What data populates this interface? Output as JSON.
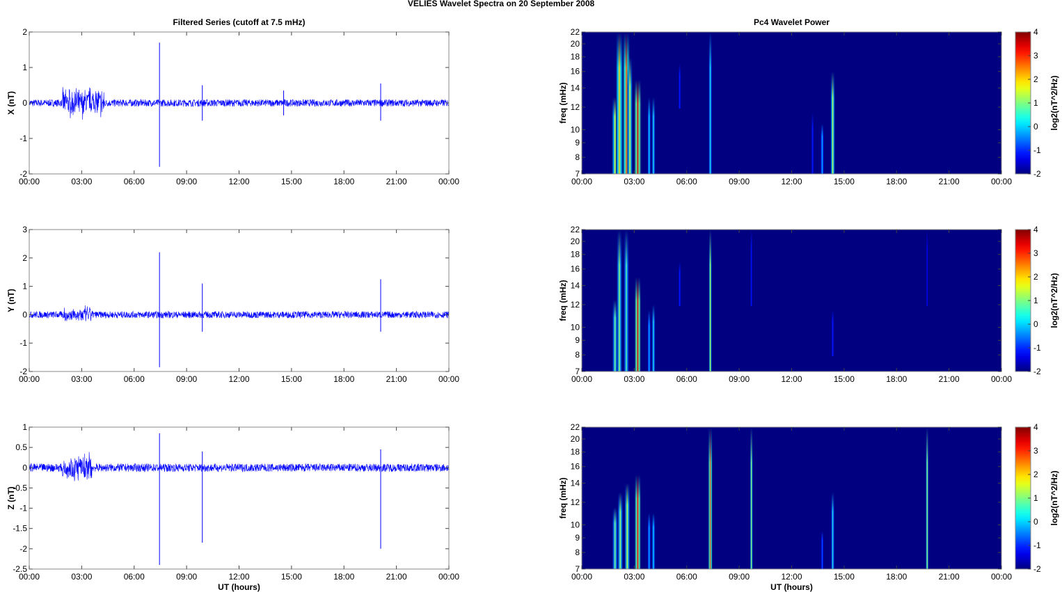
{
  "title": "VELIES Wavelet Spectra on 20 September 2008",
  "chart_data": [
    {
      "type": "line",
      "title": "Filtered Series (cutoff at 7.5 mHz)",
      "ylabel": "X (nT)",
      "xlabel": "",
      "ylim": [
        -2,
        2
      ],
      "yticks": [
        -2,
        -1,
        0,
        1,
        2
      ],
      "xlim": [
        0,
        24
      ],
      "xticks": [
        "00:00",
        "03:00",
        "06:00",
        "09:00",
        "12:00",
        "15:00",
        "18:00",
        "21:00",
        "00:00"
      ],
      "color": "#0000ff",
      "noise_amplitude": 0.1,
      "bursts": [
        {
          "t_start": 1.9,
          "t_end": 4.3,
          "amplitude": 0.5
        }
      ],
      "spikes": [
        {
          "t": 7.45,
          "max": 1.7,
          "min": -1.8
        },
        {
          "t": 9.9,
          "max": 0.5,
          "min": -0.5
        },
        {
          "t": 14.55,
          "max": 0.35,
          "min": -0.35
        },
        {
          "t": 20.1,
          "max": 0.55,
          "min": -0.5
        }
      ]
    },
    {
      "type": "line",
      "title": "",
      "ylabel": "Y (nT)",
      "xlabel": "",
      "ylim": [
        -2,
        3
      ],
      "yticks": [
        -2,
        -1,
        0,
        1,
        2,
        3
      ],
      "xlim": [
        0,
        24
      ],
      "xticks": [
        "00:00",
        "03:00",
        "06:00",
        "09:00",
        "12:00",
        "15:00",
        "18:00",
        "21:00",
        "00:00"
      ],
      "color": "#0000ff",
      "noise_amplitude": 0.12,
      "bursts": [
        {
          "t_start": 1.9,
          "t_end": 3.6,
          "amplitude": 0.35
        }
      ],
      "spikes": [
        {
          "t": 7.45,
          "max": 2.2,
          "min": -1.85
        },
        {
          "t": 9.9,
          "max": 1.1,
          "min": -0.6
        },
        {
          "t": 20.1,
          "max": 1.25,
          "min": -0.6
        }
      ]
    },
    {
      "type": "line",
      "title": "",
      "ylabel": "Z (nT)",
      "xlabel": "UT (hours)",
      "ylim": [
        -2.5,
        1
      ],
      "yticks": [
        -2.5,
        -2,
        -1.5,
        -1,
        -0.5,
        0,
        0.5,
        1
      ],
      "xlim": [
        0,
        24
      ],
      "xticks": [
        "00:00",
        "03:00",
        "06:00",
        "09:00",
        "12:00",
        "15:00",
        "18:00",
        "21:00",
        "00:00"
      ],
      "color": "#0000ff",
      "noise_amplitude": 0.1,
      "bursts": [
        {
          "t_start": 1.9,
          "t_end": 3.6,
          "amplitude": 0.4
        }
      ],
      "spikes": [
        {
          "t": 7.45,
          "max": 0.85,
          "min": -2.4
        },
        {
          "t": 9.9,
          "max": 0.4,
          "min": -1.85
        },
        {
          "t": 20.1,
          "max": 0.45,
          "min": -2.0
        }
      ]
    },
    {
      "type": "heatmap",
      "title": "Pc4 Wavelet Power",
      "ylabel": "freq (mHz)",
      "xlabel": "",
      "ylim": [
        7,
        22
      ],
      "yscale": "log",
      "yticks": [
        7,
        8,
        9,
        10,
        12,
        14,
        16,
        18,
        20,
        22
      ],
      "xlim": [
        0,
        24
      ],
      "xticks": [
        "00:00",
        "03:00",
        "06:00",
        "09:00",
        "12:00",
        "15:00",
        "18:00",
        "21:00",
        "00:00"
      ],
      "colorbar": {
        "label": "log2(nT^2/Hz)",
        "range": [
          -2,
          4
        ],
        "ticks": [
          -2,
          -1,
          0,
          1,
          2,
          3,
          4
        ],
        "colormap": "jet"
      },
      "background": -2,
      "streaks": [
        {
          "t": 1.9,
          "fmin": 7,
          "fmax": 13,
          "power": 1.5,
          "w": 0.18
        },
        {
          "t": 2.15,
          "fmin": 7,
          "fmax": 22,
          "power": 2,
          "w": 0.2
        },
        {
          "t": 2.55,
          "fmin": 7,
          "fmax": 22,
          "power": 2.8,
          "w": 0.2
        },
        {
          "t": 2.75,
          "fmin": 7,
          "fmax": 18,
          "power": 1.5,
          "w": 0.15
        },
        {
          "t": 3.2,
          "fmin": 7,
          "fmax": 15,
          "power": 3.5,
          "w": 0.2
        },
        {
          "t": 3.85,
          "fmin": 7,
          "fmax": 13,
          "power": 0.3,
          "w": 0.1
        },
        {
          "t": 4.1,
          "fmin": 7,
          "fmax": 13,
          "power": 0.5,
          "w": 0.1
        },
        {
          "t": 5.6,
          "fmin": 12,
          "fmax": 17,
          "power": -1,
          "w": 0.08
        },
        {
          "t": 7.35,
          "fmin": 7,
          "fmax": 22,
          "power": 0.5,
          "w": 0.1
        },
        {
          "t": 13.2,
          "fmin": 7,
          "fmax": 11.5,
          "power": -1,
          "w": 0.08
        },
        {
          "t": 13.75,
          "fmin": 7,
          "fmax": 10.5,
          "power": 0,
          "w": 0.1
        },
        {
          "t": 14.35,
          "fmin": 7,
          "fmax": 16,
          "power": 1.6,
          "w": 0.12
        }
      ]
    },
    {
      "type": "heatmap",
      "title": "",
      "ylabel": "freq (mHz)",
      "xlabel": "",
      "ylim": [
        7,
        22
      ],
      "yscale": "log",
      "yticks": [
        7,
        8,
        9,
        10,
        12,
        14,
        16,
        18,
        20,
        22
      ],
      "xlim": [
        0,
        24
      ],
      "xticks": [
        "00:00",
        "03:00",
        "06:00",
        "09:00",
        "12:00",
        "15:00",
        "18:00",
        "21:00",
        "00:00"
      ],
      "colorbar": {
        "label": "log2(nT^2/Hz)",
        "range": [
          -2,
          4
        ],
        "ticks": [
          -2,
          -1,
          0,
          1,
          2,
          3,
          4
        ],
        "colormap": "jet"
      },
      "background": -2,
      "streaks": [
        {
          "t": 1.9,
          "fmin": 7,
          "fmax": 12.5,
          "power": 1,
          "w": 0.15
        },
        {
          "t": 2.15,
          "fmin": 7,
          "fmax": 22,
          "power": 1.2,
          "w": 0.15
        },
        {
          "t": 2.55,
          "fmin": 7,
          "fmax": 22,
          "power": 0.8,
          "w": 0.15
        },
        {
          "t": 3.2,
          "fmin": 7,
          "fmax": 15,
          "power": 3.5,
          "w": 0.18
        },
        {
          "t": 3.85,
          "fmin": 7,
          "fmax": 11.5,
          "power": 0,
          "w": 0.1
        },
        {
          "t": 4.1,
          "fmin": 7,
          "fmax": 12,
          "power": 0.5,
          "w": 0.1
        },
        {
          "t": 5.6,
          "fmin": 12,
          "fmax": 17,
          "power": -1,
          "w": 0.08
        },
        {
          "t": 7.35,
          "fmin": 7,
          "fmax": 22,
          "power": 1.8,
          "w": 0.08
        },
        {
          "t": 9.7,
          "fmin": 12,
          "fmax": 22,
          "power": -1,
          "w": 0.06
        },
        {
          "t": 14.35,
          "fmin": 8,
          "fmax": 11.5,
          "power": -1,
          "w": 0.08
        },
        {
          "t": 19.75,
          "fmin": 12,
          "fmax": 22,
          "power": -1.2,
          "w": 0.06
        }
      ]
    },
    {
      "type": "heatmap",
      "title": "",
      "ylabel": "freq (mHz)",
      "xlabel": "UT (hours)",
      "ylim": [
        7,
        22
      ],
      "yscale": "log",
      "yticks": [
        7,
        8,
        9,
        10,
        12,
        14,
        16,
        18,
        20,
        22
      ],
      "xlim": [
        0,
        24
      ],
      "xticks": [
        "00:00",
        "03:00",
        "06:00",
        "09:00",
        "12:00",
        "15:00",
        "18:00",
        "21:00",
        "00:00"
      ],
      "colorbar": {
        "label": "log2(nT^2/Hz)",
        "range": [
          -2,
          4
        ],
        "ticks": [
          -2,
          -1,
          0,
          1,
          2,
          3,
          4
        ],
        "colormap": "jet"
      },
      "background": -2,
      "streaks": [
        {
          "t": 1.9,
          "fmin": 7,
          "fmax": 11.5,
          "power": 1,
          "w": 0.15
        },
        {
          "t": 2.2,
          "fmin": 7,
          "fmax": 13,
          "power": 1.2,
          "w": 0.15
        },
        {
          "t": 2.6,
          "fmin": 7,
          "fmax": 14,
          "power": 1.5,
          "w": 0.15
        },
        {
          "t": 3.2,
          "fmin": 7,
          "fmax": 15,
          "power": 3.3,
          "w": 0.18
        },
        {
          "t": 3.85,
          "fmin": 7,
          "fmax": 11,
          "power": 0,
          "w": 0.1
        },
        {
          "t": 4.1,
          "fmin": 7,
          "fmax": 11,
          "power": 0.3,
          "w": 0.1
        },
        {
          "t": 7.35,
          "fmin": 7,
          "fmax": 22,
          "power": 3,
          "w": 0.12
        },
        {
          "t": 9.7,
          "fmin": 7,
          "fmax": 22,
          "power": 1.5,
          "w": 0.08
        },
        {
          "t": 13.75,
          "fmin": 7,
          "fmax": 9.5,
          "power": -0.5,
          "w": 0.08
        },
        {
          "t": 14.35,
          "fmin": 7,
          "fmax": 13,
          "power": 0.5,
          "w": 0.1
        },
        {
          "t": 19.75,
          "fmin": 7,
          "fmax": 22,
          "power": 1.5,
          "w": 0.08
        }
      ]
    }
  ]
}
